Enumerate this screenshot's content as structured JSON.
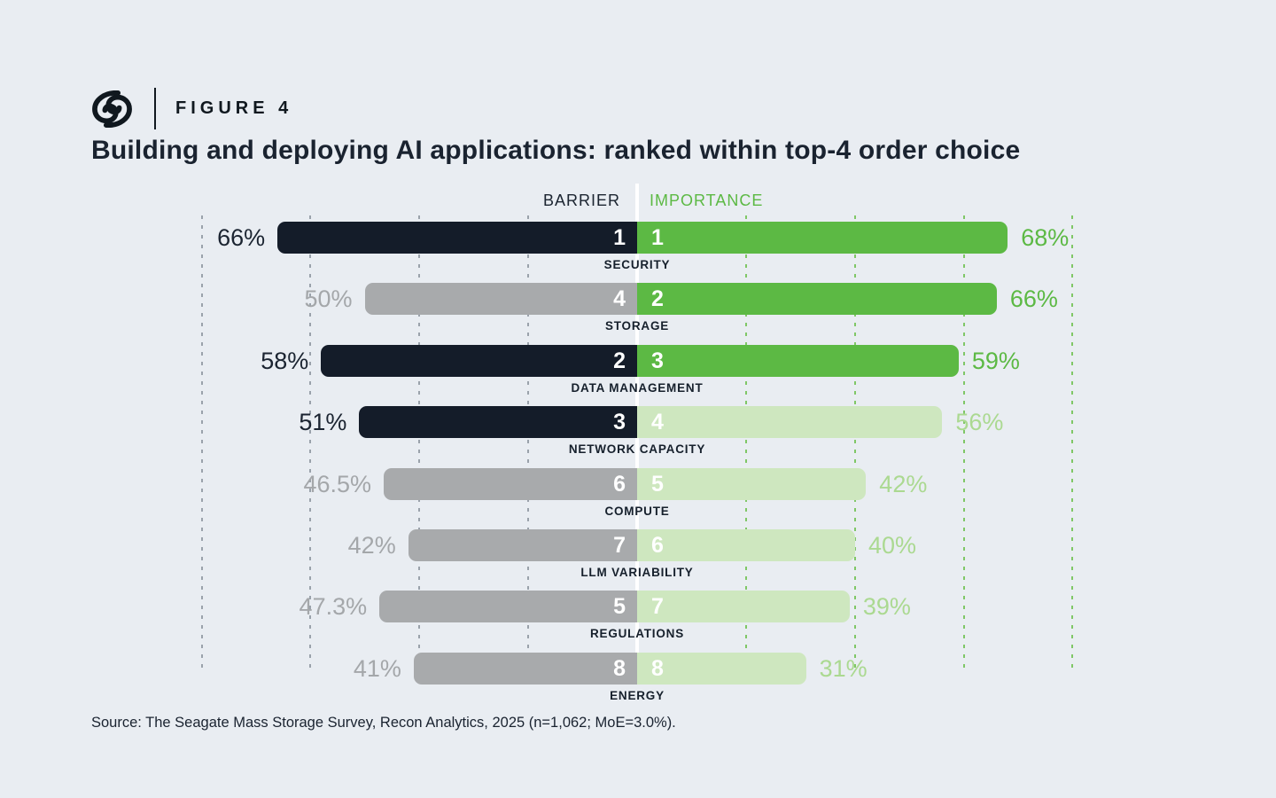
{
  "figure_label": "FIGURE 4",
  "title": "Building and deploying AI applications: ranked within top-4 order choice",
  "source": "Source: The Seagate Mass Storage Survey, Recon Analytics, 2025 (n=1,062; MoE=3.0%).",
  "column_headers": {
    "left": "BARRIER",
    "right": "IMPORTANCE"
  },
  "colors": {
    "background": "#e9edf2",
    "dark_bar": "#141c29",
    "gray_bar": "#a8aaac",
    "green_bar": "#5cb944",
    "light_green_bar": "#cee7bf",
    "gray_gridline": "#9aa2ab",
    "green_gridline": "#7fc766",
    "light_green_text": "#abd991",
    "center_divider": "#ffffff"
  },
  "chart_data": {
    "type": "bar",
    "orientation": "diverging-horizontal",
    "title": "Building and deploying AI applications: ranked within top-4 order choice",
    "axis": {
      "max_percent": 80,
      "gridline_step_percent": 20,
      "grid": "dashed-vertical"
    },
    "legend_position": "top-center",
    "categories": [
      "SECURITY",
      "STORAGE",
      "DATA MANAGEMENT",
      "NETWORK CAPACITY",
      "COMPUTE",
      "LLM VARIABILITY",
      "REGULATIONS",
      "ENERGY"
    ],
    "series": [
      {
        "name": "BARRIER",
        "direction": "left",
        "values": [
          66,
          50,
          58,
          51,
          46.5,
          42,
          47.3,
          41
        ],
        "labels": [
          "66%",
          "50%",
          "58%",
          "51%",
          "46.5%",
          "42%",
          "47.3%",
          "41%"
        ],
        "ranks": [
          1,
          4,
          2,
          3,
          6,
          7,
          5,
          8
        ],
        "emphasis": [
          true,
          false,
          true,
          true,
          false,
          false,
          false,
          false
        ]
      },
      {
        "name": "IMPORTANCE",
        "direction": "right",
        "values": [
          68,
          66,
          59,
          56,
          42,
          40,
          39,
          31
        ],
        "labels": [
          "68%",
          "66%",
          "59%",
          "56%",
          "42%",
          "40%",
          "39%",
          "31%"
        ],
        "ranks": [
          1,
          2,
          3,
          4,
          5,
          6,
          7,
          8
        ],
        "emphasis": [
          true,
          true,
          true,
          false,
          false,
          false,
          false,
          false
        ]
      }
    ]
  }
}
